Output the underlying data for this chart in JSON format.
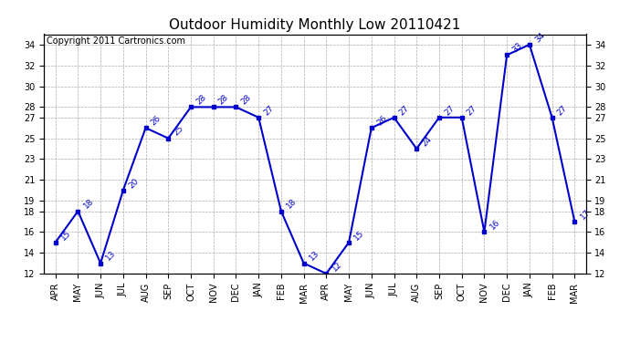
{
  "title": "Outdoor Humidity Monthly Low 20110421",
  "copyright": "Copyright 2011 Cartronics.com",
  "months": [
    "APR",
    "MAY",
    "JUN",
    "JUL",
    "AUG",
    "SEP",
    "OCT",
    "NOV",
    "DEC",
    "JAN",
    "FEB",
    "MAR",
    "APR",
    "MAY",
    "JUN",
    "JUL",
    "AUG",
    "SEP",
    "OCT",
    "NOV",
    "DEC",
    "JAN",
    "FEB",
    "MAR"
  ],
  "values": [
    15,
    18,
    13,
    20,
    26,
    25,
    28,
    28,
    28,
    27,
    18,
    13,
    12,
    15,
    26,
    27,
    24,
    27,
    27,
    16,
    33,
    34,
    27,
    17
  ],
  "ylim": [
    12,
    35
  ],
  "yticks": [
    12,
    14,
    16,
    18,
    19,
    21,
    23,
    25,
    27,
    28,
    30,
    32,
    34
  ],
  "line_color": "#0000cc",
  "marker_color": "#0000cc",
  "bg_color": "#ffffff",
  "grid_color": "#aaaaaa",
  "title_fontsize": 11,
  "copyright_fontsize": 7,
  "label_fontsize": 6.5,
  "tick_fontsize": 7
}
